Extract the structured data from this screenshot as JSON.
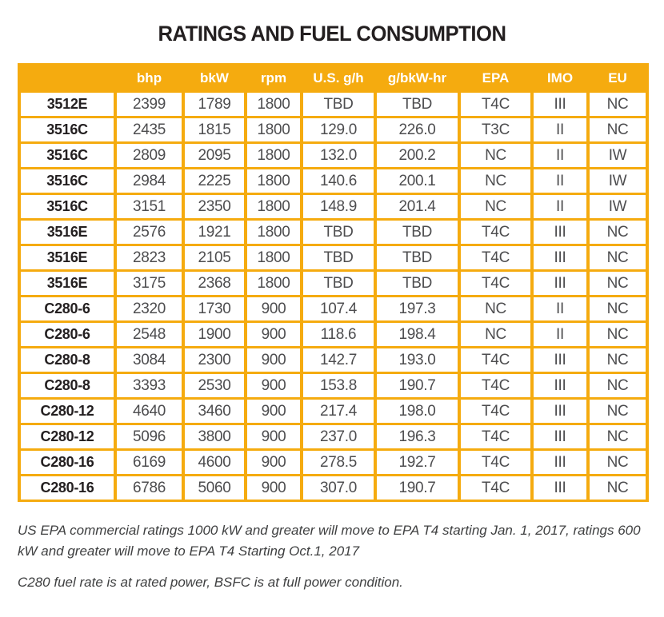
{
  "title": "RATINGS AND FUEL CONSUMPTION",
  "colors": {
    "accent_orange": "#F5AB0F",
    "header_text": "#FFFFFF",
    "model_text": "#231F20",
    "data_text": "#4D4D4F"
  },
  "table": {
    "columns": [
      "",
      "bhp",
      "bkW",
      "rpm",
      "U.S. g/h",
      "g/bkW-hr",
      "EPA",
      "IMO",
      "EU"
    ],
    "rows": [
      [
        "3512E",
        "2399",
        "1789",
        "1800",
        "TBD",
        "TBD",
        "T4C",
        "III",
        "NC"
      ],
      [
        "3516C",
        "2435",
        "1815",
        "1800",
        "129.0",
        "226.0",
        "T3C",
        "II",
        "NC"
      ],
      [
        "3516C",
        "2809",
        "2095",
        "1800",
        "132.0",
        "200.2",
        "NC",
        "II",
        "IW"
      ],
      [
        "3516C",
        "2984",
        "2225",
        "1800",
        "140.6",
        "200.1",
        "NC",
        "II",
        "IW"
      ],
      [
        "3516C",
        "3151",
        "2350",
        "1800",
        "148.9",
        "201.4",
        "NC",
        "II",
        "IW"
      ],
      [
        "3516E",
        "2576",
        "1921",
        "1800",
        "TBD",
        "TBD",
        "T4C",
        "III",
        "NC"
      ],
      [
        "3516E",
        "2823",
        "2105",
        "1800",
        "TBD",
        "TBD",
        "T4C",
        "III",
        "NC"
      ],
      [
        "3516E",
        "3175",
        "2368",
        "1800",
        "TBD",
        "TBD",
        "T4C",
        "III",
        "NC"
      ],
      [
        "C280-6",
        "2320",
        "1730",
        "900",
        "107.4",
        "197.3",
        "NC",
        "II",
        "NC"
      ],
      [
        "C280-6",
        "2548",
        "1900",
        "900",
        "118.6",
        "198.4",
        "NC",
        "II",
        "NC"
      ],
      [
        "C280-8",
        "3084",
        "2300",
        "900",
        "142.7",
        "193.0",
        "T4C",
        "III",
        "NC"
      ],
      [
        "C280-8",
        "3393",
        "2530",
        "900",
        "153.8",
        "190.7",
        "T4C",
        "III",
        "NC"
      ],
      [
        "C280-12",
        "4640",
        "3460",
        "900",
        "217.4",
        "198.0",
        "T4C",
        "III",
        "NC"
      ],
      [
        "C280-12",
        "5096",
        "3800",
        "900",
        "237.0",
        "196.3",
        "T4C",
        "III",
        "NC"
      ],
      [
        "C280-16",
        "6169",
        "4600",
        "900",
        "278.5",
        "192.7",
        "T4C",
        "III",
        "NC"
      ],
      [
        "C280-16",
        "6786",
        "5060",
        "900",
        "307.0",
        "190.7",
        "T4C",
        "III",
        "NC"
      ]
    ]
  },
  "notes": [
    "US EPA commercial ratings 1000 kW and greater will move to EPA T4 starting Jan. 1, 2017, ratings 600 kW and greater will move to EPA T4 Starting Oct.1, 2017",
    "C280 fuel rate is at rated power, BSFC is at full power condition."
  ]
}
